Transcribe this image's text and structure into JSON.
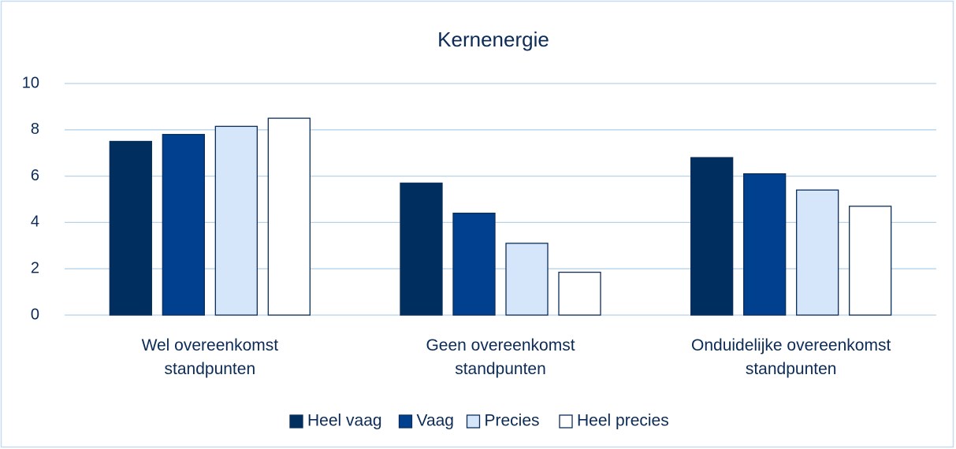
{
  "chart_data": {
    "type": "bar",
    "title": "Kernenergie",
    "categories": [
      "Wel overeenkomst standpunten",
      "Geen overeenkomst standpunten",
      "Onduidelijke overeenkomst standpunten"
    ],
    "series": [
      {
        "name": "Heel vaag",
        "color": "#002f5f",
        "values": [
          7.5,
          5.7,
          6.8
        ]
      },
      {
        "name": "Vaag",
        "color": "#00408f",
        "values": [
          7.8,
          4.4,
          6.1
        ]
      },
      {
        "name": "Precies",
        "color": "#d6e6fa",
        "values": [
          8.15,
          3.1,
          5.4
        ]
      },
      {
        "name": "Heel precies",
        "color": "#ffffff",
        "values": [
          8.5,
          1.85,
          4.7
        ]
      }
    ],
    "edgecolor": "#0a2d5a",
    "ylim": [
      0,
      10
    ],
    "yticks": [
      0,
      2,
      4,
      6,
      8,
      10
    ],
    "grid": true,
    "legend": "bottom"
  }
}
